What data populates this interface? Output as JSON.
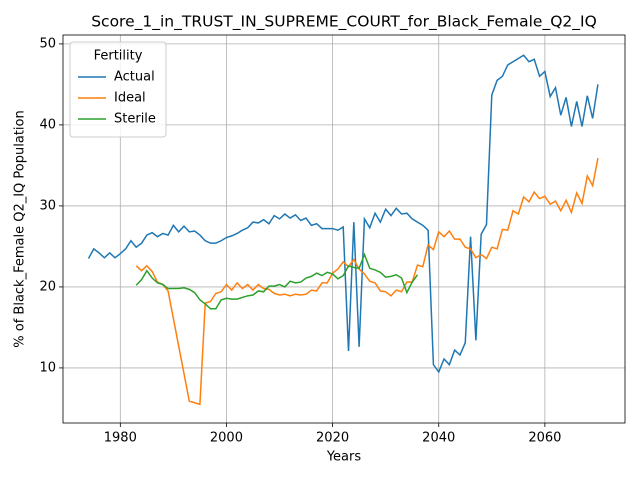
{
  "chart_data": {
    "type": "line",
    "title": "Score_1_in_TRUST_IN_SUPREME_COURT_for_Black_Female_Q2_IQ",
    "x_label": "Years",
    "y_label": "% of Black_Female Q2_IQ Population",
    "legend_title": "Fertility",
    "legend_position": "upper left",
    "grid": true,
    "xlim": [
      1969.2,
      2075.1
    ],
    "ylim": [
      3.2,
      51.1
    ],
    "xticks": [
      1980,
      2000,
      2020,
      2040,
      2060
    ],
    "yticks": [
      10,
      20,
      30,
      40,
      50
    ],
    "series": [
      {
        "name": "Actual",
        "color": "#1f77b4",
        "x": [
          1974,
          1975,
          1976,
          1977,
          1978,
          1979,
          1980,
          1981,
          1982,
          1983,
          1984,
          1985,
          1986,
          1987,
          1988,
          1989,
          1990,
          1991,
          1992,
          1993,
          1994,
          1995,
          1996,
          1997,
          1998,
          1999,
          2000,
          2001,
          2002,
          2003,
          2004,
          2005,
          2006,
          2007,
          2008,
          2009,
          2010,
          2011,
          2012,
          2013,
          2014,
          2015,
          2016,
          2017,
          2018,
          2019,
          2020,
          2021,
          2022,
          2023,
          2024,
          2025,
          2026,
          2027,
          2028,
          2029,
          2030,
          2031,
          2032,
          2033,
          2034,
          2035,
          2036,
          2037,
          2038,
          2039,
          2040,
          2041,
          2042,
          2043,
          2044,
          2045,
          2046,
          2047,
          2048,
          2049,
          2050,
          2051,
          2052,
          2053,
          2054,
          2055,
          2056,
          2057,
          2058,
          2059,
          2060,
          2061,
          2062,
          2063,
          2064,
          2065,
          2066,
          2067,
          2068,
          2069,
          2070
        ],
        "values": [
          23.5,
          24.7,
          24.2,
          23.6,
          24.2,
          23.6,
          24.1,
          24.7,
          25.7,
          24.9,
          25.4,
          26.4,
          26.7,
          26.2,
          26.6,
          26.4,
          27.6,
          26.8,
          27.5,
          26.8,
          26.9,
          26.4,
          25.7,
          25.4,
          25.4,
          25.7,
          26.1,
          26.3,
          26.6,
          27.0,
          27.3,
          28.0,
          27.9,
          28.3,
          27.8,
          28.8,
          28.4,
          29.0,
          28.5,
          28.9,
          28.2,
          28.5,
          27.6,
          27.8,
          27.2,
          27.2,
          27.2,
          27.0,
          27.4,
          12.1,
          28.0,
          12.6,
          28.4,
          27.3,
          29.1,
          28.0,
          29.6,
          28.8,
          29.7,
          29.0,
          29.1,
          28.4,
          28.0,
          27.6,
          27.0,
          10.4,
          9.5,
          11.1,
          10.4,
          12.2,
          11.6,
          13.1,
          26.2,
          13.4,
          26.5,
          27.7,
          43.7,
          45.5,
          46.0,
          47.4,
          47.8,
          48.2,
          48.6,
          47.8,
          48.1,
          46.0,
          46.6,
          43.5,
          44.6,
          41.2,
          43.4,
          39.8,
          42.9,
          39.8,
          43.6,
          40.8,
          45.0
        ]
      },
      {
        "name": "Ideal",
        "color": "#ff7f0e",
        "x": [
          1983,
          1984,
          1985,
          1986,
          1987,
          1988,
          1989,
          1990,
          1991,
          1992,
          1993,
          1994,
          1995,
          1996,
          1997,
          1998,
          1999,
          2000,
          2001,
          2002,
          2003,
          2004,
          2005,
          2006,
          2007,
          2008,
          2009,
          2010,
          2011,
          2012,
          2013,
          2014,
          2015,
          2016,
          2017,
          2018,
          2019,
          2020,
          2021,
          2022,
          2023,
          2024,
          2025,
          2026,
          2027,
          2028,
          2029,
          2030,
          2031,
          2032,
          2033,
          2034,
          2035,
          2036,
          2037,
          2038,
          2039,
          2040,
          2041,
          2042,
          2043,
          2044,
          2045,
          2046,
          2047,
          2048,
          2049,
          2050,
          2051,
          2052,
          2053,
          2054,
          2055,
          2056,
          2057,
          2058,
          2059,
          2060,
          2061,
          2062,
          2063,
          2064,
          2065,
          2066,
          2067,
          2068,
          2069,
          2070
        ],
        "values": [
          22.6,
          22.0,
          22.6,
          21.9,
          20.6,
          20.3,
          19.5,
          16.1,
          12.7,
          9.3,
          5.9,
          5.7,
          5.5,
          18.0,
          18.2,
          19.2,
          19.4,
          20.3,
          19.6,
          20.5,
          19.8,
          20.3,
          19.6,
          20.3,
          19.8,
          19.7,
          19.2,
          19.0,
          19.1,
          18.9,
          19.1,
          19.0,
          19.1,
          19.6,
          19.5,
          20.5,
          20.5,
          21.7,
          22.2,
          23.1,
          22.5,
          23.4,
          22.2,
          21.6,
          20.7,
          20.5,
          19.5,
          19.4,
          18.9,
          19.6,
          19.4,
          20.6,
          20.6,
          22.7,
          22.5,
          25.2,
          24.6,
          26.8,
          26.2,
          26.9,
          25.9,
          25.9,
          24.9,
          24.7,
          23.6,
          24.0,
          23.5,
          24.9,
          24.7,
          27.1,
          27.0,
          29.4,
          29.0,
          31.1,
          30.5,
          31.7,
          30.9,
          31.2,
          30.2,
          30.6,
          29.4,
          30.7,
          29.2,
          31.6,
          30.3,
          33.7,
          32.5,
          35.9
        ]
      },
      {
        "name": "Sterile",
        "color": "#2ca02c",
        "x": [
          1983,
          1984,
          1985,
          1986,
          1987,
          1988,
          1989,
          1990,
          1991,
          1992,
          1993,
          1994,
          1995,
          1996,
          1997,
          1998,
          1999,
          2000,
          2001,
          2002,
          2003,
          2004,
          2005,
          2006,
          2007,
          2008,
          2009,
          2010,
          2011,
          2012,
          2013,
          2014,
          2015,
          2016,
          2017,
          2018,
          2019,
          2020,
          2021,
          2022,
          2023,
          2024,
          2025,
          2026,
          2027,
          2028,
          2029,
          2030,
          2031,
          2032,
          2033,
          2034,
          2035,
          2036
        ],
        "values": [
          20.2,
          20.9,
          22.0,
          21.1,
          20.5,
          20.3,
          19.8,
          19.8,
          19.8,
          19.9,
          19.7,
          19.3,
          18.4,
          17.9,
          17.3,
          17.3,
          18.4,
          18.6,
          18.5,
          18.5,
          18.7,
          18.9,
          19.0,
          19.5,
          19.4,
          20.1,
          20.1,
          20.3,
          20.0,
          20.7,
          20.5,
          20.6,
          21.1,
          21.3,
          21.7,
          21.4,
          21.8,
          21.6,
          21.0,
          21.4,
          22.6,
          22.4,
          22.3,
          24.0,
          22.3,
          22.1,
          21.8,
          21.2,
          21.3,
          21.5,
          21.1,
          19.3,
          20.6,
          21.5
        ]
      }
    ]
  }
}
